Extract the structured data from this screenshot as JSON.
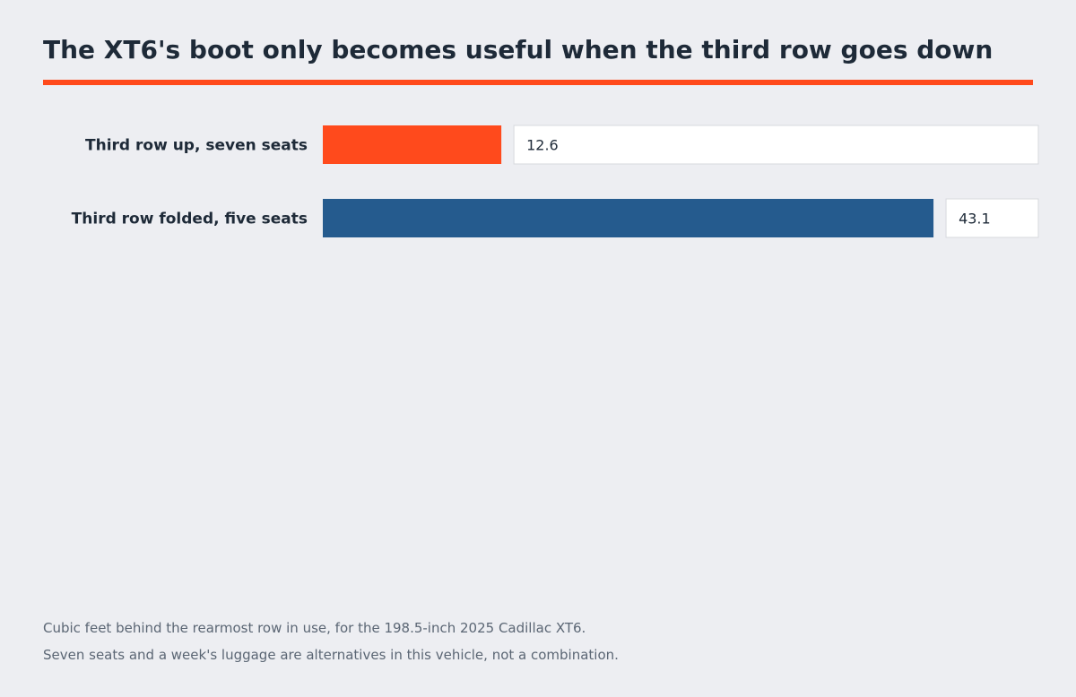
{
  "chart_data": {
    "type": "bar",
    "orientation": "horizontal",
    "title": "The XT6's boot only becomes useful when the third row goes down",
    "categories": [
      "Third row up, seven seats",
      "Third row folded, five seats"
    ],
    "values": [
      12.6,
      43.1
    ],
    "value_labels": [
      "12.6",
      "43.1"
    ],
    "colors": [
      "#ff4a1c",
      "#255b8e"
    ],
    "xlim": [
      0,
      50.5
    ],
    "grid": false,
    "legend": "none",
    "notes": [
      "Cubic feet behind the rearmost row in use, for the 198.5-inch 2025 Cadillac XT6.",
      "Seven seats and a week's luggage are alternatives in this vehicle, not a combination."
    ]
  },
  "colors": {
    "background": "#edeef2",
    "accent": "#ff4a1c",
    "title_text": "#1e2a38",
    "note_text": "#5b6674"
  }
}
